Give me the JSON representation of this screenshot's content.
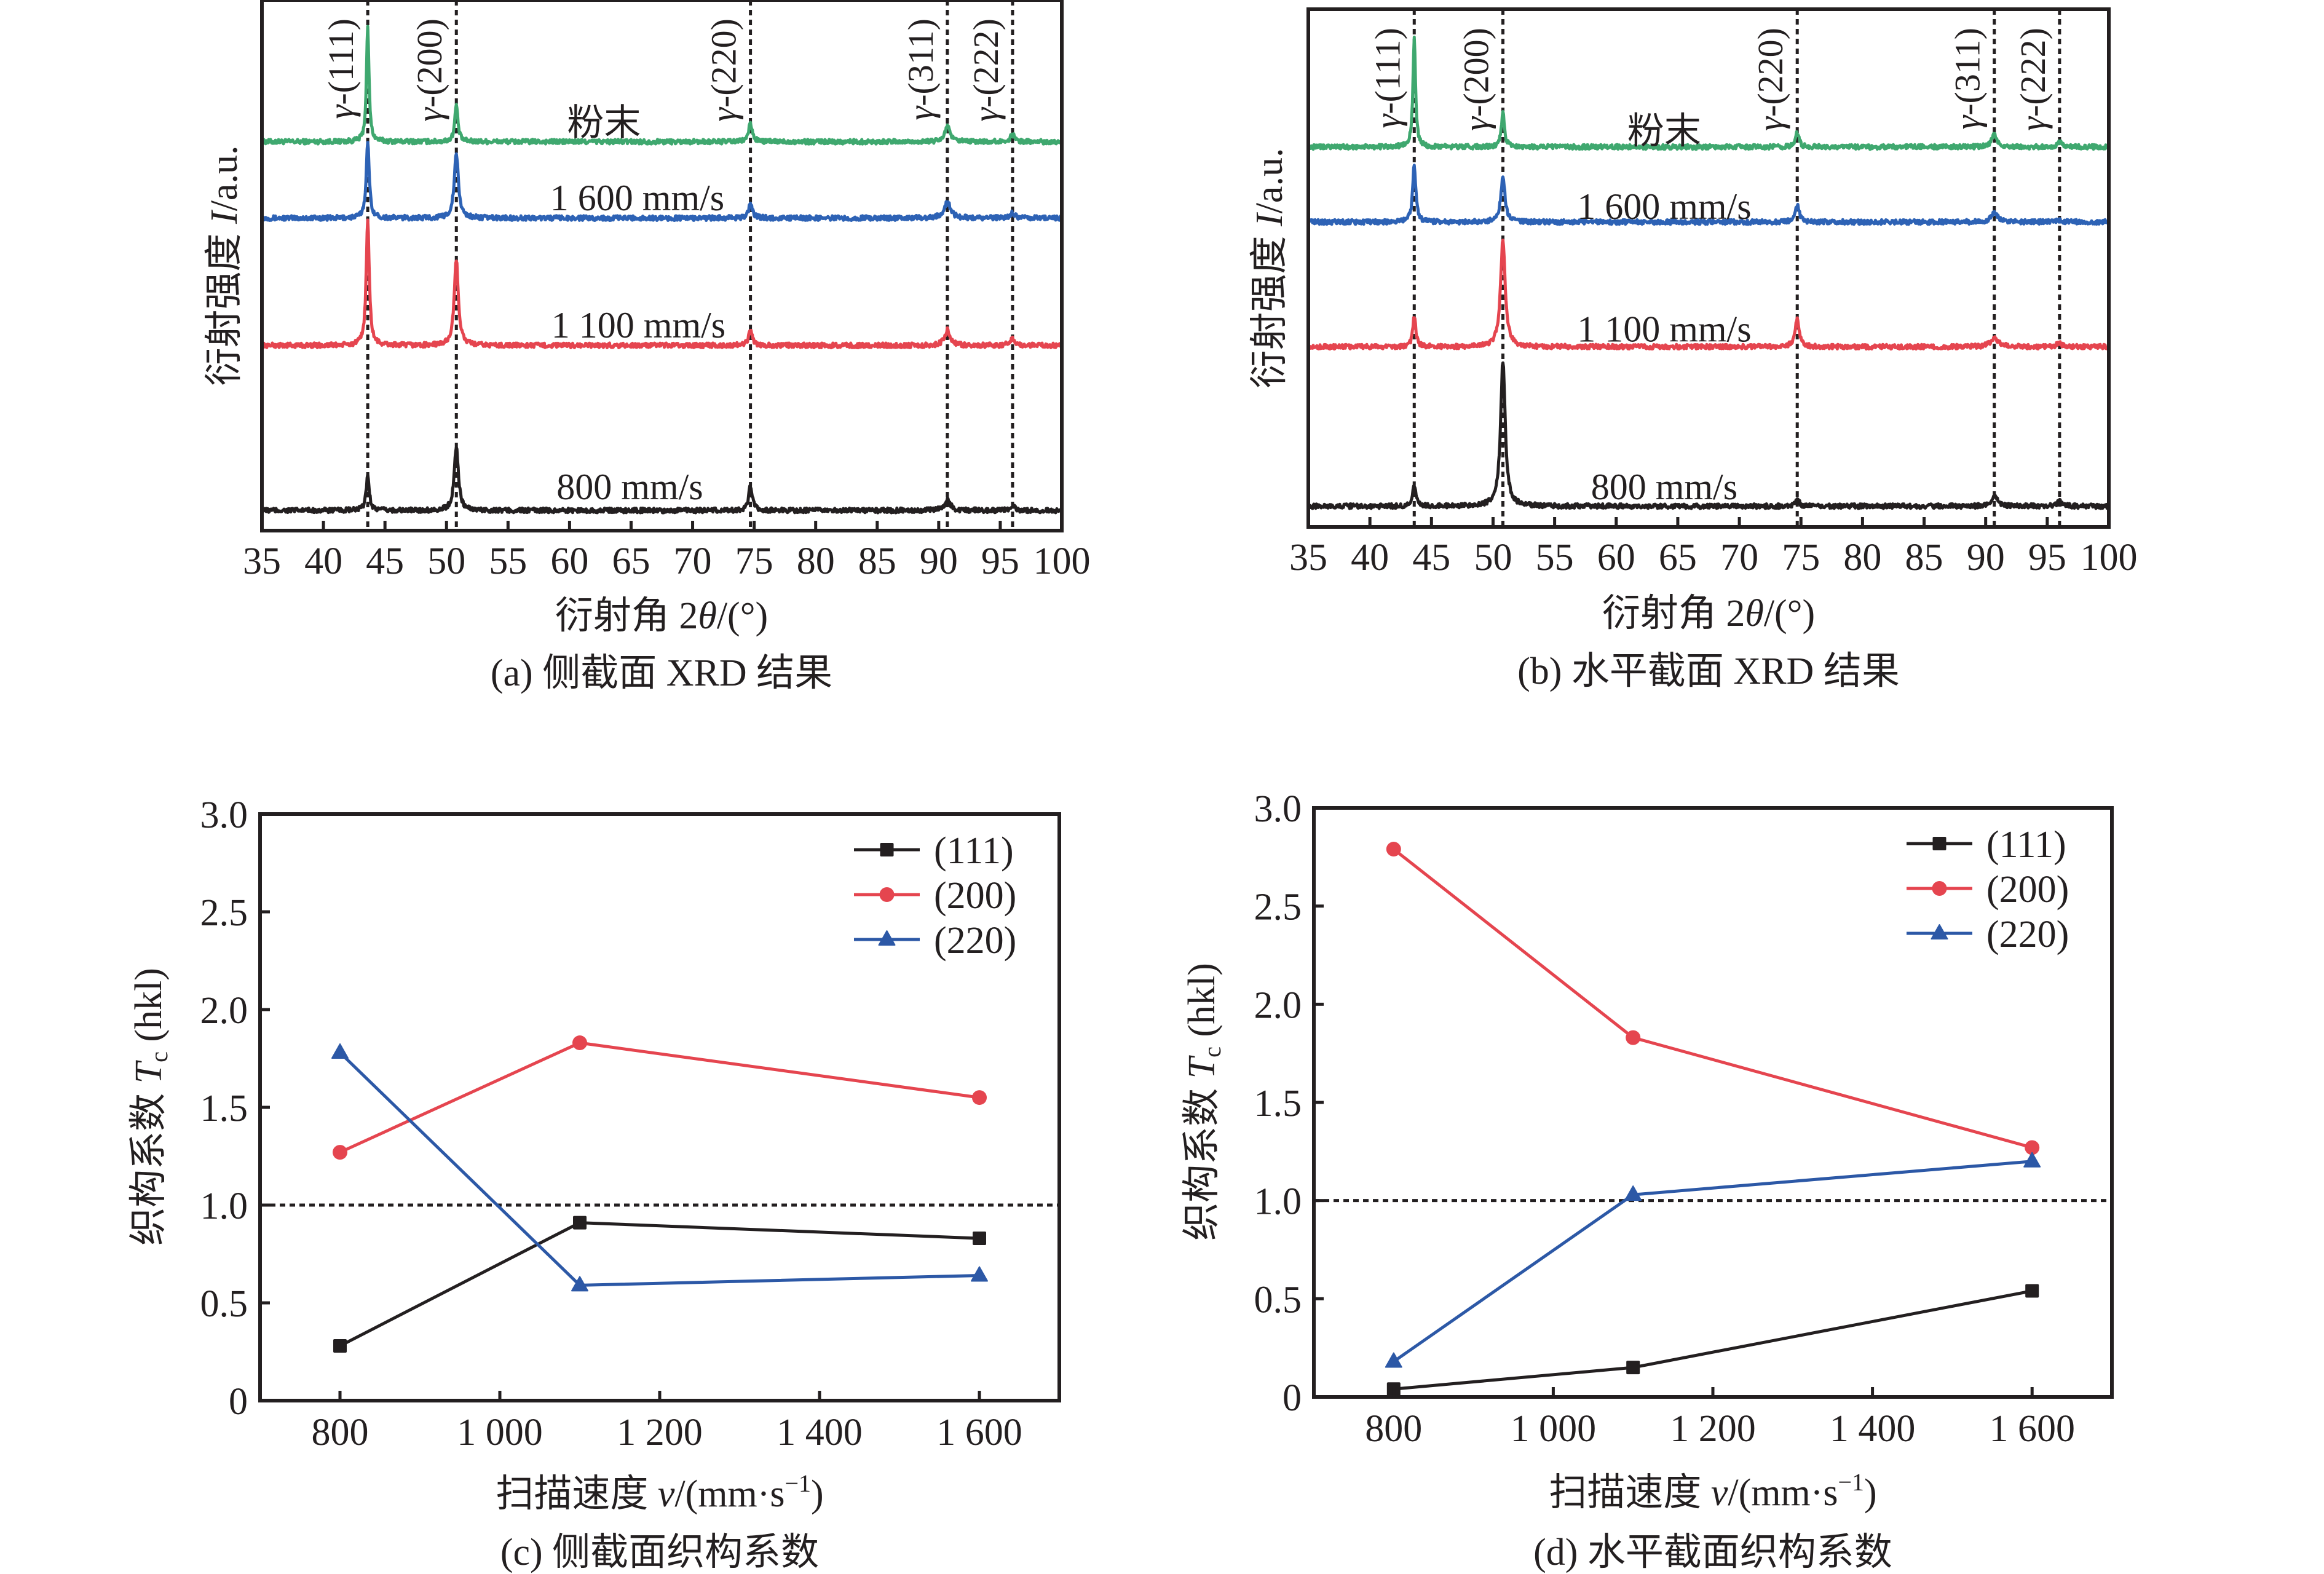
{
  "colors": {
    "axis": "#231f20",
    "powder": "#3fa86f",
    "v1600": "#2d62b5",
    "v1100": "#e5454f",
    "v800": "#231f20",
    "s111": "#231f20",
    "s200": "#e5454f",
    "s220": "#2c58a6"
  },
  "chart_data": [
    {
      "id": "a",
      "type": "line",
      "title": "(a) 侧截面 XRD 结果",
      "xlabel": "衍射角 2θ/(°)",
      "ylabel": "衍射强度 I/a.u.",
      "xlim": [
        35,
        100
      ],
      "ylim": [
        0,
        100
      ],
      "xticks": [
        35,
        40,
        45,
        50,
        55,
        60,
        65,
        70,
        75,
        80,
        85,
        90,
        95,
        100
      ],
      "xtick_labels": [
        "35",
        "40",
        "45",
        "50",
        "55",
        "60",
        "65",
        "70",
        "75",
        "80",
        "85",
        "90",
        "95",
        "100"
      ],
      "yticks": [],
      "grid": false,
      "reference_lines": [
        {
          "x": 43.6,
          "label": "γ-(111)"
        },
        {
          "x": 50.8,
          "label": "γ-(200)"
        },
        {
          "x": 74.7,
          "label": "γ-(220)"
        },
        {
          "x": 90.7,
          "label": "γ-(311)"
        },
        {
          "x": 96.0,
          "label": "γ-(222)"
        }
      ],
      "series": [
        {
          "name": "粉末",
          "color_key": "powder",
          "baseline": 73.3,
          "label_at": [
            62.8,
            76.8
          ],
          "peaks": [
            {
              "x": 43.6,
              "height": 21.5,
              "width": 0.25
            },
            {
              "x": 50.8,
              "height": 7.0,
              "width": 0.3
            },
            {
              "x": 74.7,
              "height": 3.5,
              "width": 0.35
            },
            {
              "x": 90.7,
              "height": 3.1,
              "width": 0.45
            },
            {
              "x": 96.0,
              "height": 1.3,
              "width": 0.45
            }
          ]
        },
        {
          "name": "1 600 mm/s",
          "color_key": "v1600",
          "baseline": 58.9,
          "label_at": [
            65.5,
            62.7
          ],
          "peaks": [
            {
              "x": 43.6,
              "height": 14.1,
              "width": 0.3
            },
            {
              "x": 50.8,
              "height": 12.2,
              "width": 0.4
            },
            {
              "x": 74.7,
              "height": 2.5,
              "width": 0.4
            },
            {
              "x": 90.7,
              "height": 3.1,
              "width": 0.6
            },
            {
              "x": 96.0,
              "height": 1.0,
              "width": 0.5
            }
          ]
        },
        {
          "name": "1 100 mm/s",
          "color_key": "v1100",
          "baseline": 34.9,
          "label_at": [
            65.6,
            38.7
          ],
          "peaks": [
            {
              "x": 43.6,
              "height": 23.5,
              "width": 0.3
            },
            {
              "x": 50.8,
              "height": 16.1,
              "width": 0.4
            },
            {
              "x": 74.7,
              "height": 2.6,
              "width": 0.4
            },
            {
              "x": 90.7,
              "height": 2.9,
              "width": 0.55
            },
            {
              "x": 96.0,
              "height": 1.3,
              "width": 0.5
            }
          ]
        },
        {
          "name": "800 mm/s",
          "color_key": "v800",
          "baseline": 3.8,
          "label_at": [
            64.9,
            8.2
          ],
          "peaks": [
            {
              "x": 43.6,
              "height": 6.7,
              "width": 0.3
            },
            {
              "x": 50.8,
              "height": 12.2,
              "width": 0.4
            },
            {
              "x": 74.7,
              "height": 4.6,
              "width": 0.35
            },
            {
              "x": 90.7,
              "height": 2.1,
              "width": 0.55
            },
            {
              "x": 96.0,
              "height": 0.8,
              "width": 0.5
            }
          ]
        }
      ]
    },
    {
      "id": "b",
      "type": "line",
      "title": "(b) 水平截面 XRD 结果",
      "xlabel": "衍射角 2θ/(°)",
      "ylabel": "衍射强度 I/a.u.",
      "xlim": [
        35,
        100
      ],
      "ylim": [
        0,
        100
      ],
      "xticks": [
        35,
        40,
        45,
        50,
        55,
        60,
        65,
        70,
        75,
        80,
        85,
        90,
        95,
        100
      ],
      "xtick_labels": [
        "35",
        "40",
        "45",
        "50",
        "55",
        "60",
        "65",
        "70",
        "75",
        "80",
        "85",
        "90",
        "95",
        "100"
      ],
      "yticks": [],
      "grid": false,
      "reference_lines": [
        {
          "x": 43.6,
          "label": "γ-(111)"
        },
        {
          "x": 50.8,
          "label": "γ-(200)"
        },
        {
          "x": 74.7,
          "label": "γ-(220)"
        },
        {
          "x": 90.7,
          "label": "γ-(311)"
        },
        {
          "x": 96.0,
          "label": "γ-(222)"
        }
      ],
      "series": [
        {
          "name": "粉末",
          "color_key": "powder",
          "baseline": 73.4,
          "label_at": [
            63.9,
            76.4
          ],
          "peaks": [
            {
              "x": 43.6,
              "height": 21.3,
              "width": 0.25
            },
            {
              "x": 50.8,
              "height": 6.8,
              "width": 0.3
            },
            {
              "x": 74.7,
              "height": 2.7,
              "width": 0.35
            },
            {
              "x": 90.7,
              "height": 2.7,
              "width": 0.45
            },
            {
              "x": 96.0,
              "height": 0.9,
              "width": 0.45
            }
          ]
        },
        {
          "name": "1 600 mm/s",
          "color_key": "v1600",
          "baseline": 58.9,
          "label_at": [
            63.9,
            61.9
          ],
          "peaks": [
            {
              "x": 43.6,
              "height": 11.1,
              "width": 0.3
            },
            {
              "x": 50.8,
              "height": 8.8,
              "width": 0.4
            },
            {
              "x": 74.7,
              "height": 3.3,
              "width": 0.4
            },
            {
              "x": 90.7,
              "height": 1.8,
              "width": 0.6
            },
            {
              "x": 96.0,
              "height": 0.4,
              "width": 0.5
            }
          ]
        },
        {
          "name": "1 100 mm/s",
          "color_key": "v1100",
          "baseline": 34.8,
          "label_at": [
            63.9,
            38.2
          ],
          "peaks": [
            {
              "x": 43.6,
              "height": 5.8,
              "width": 0.3
            },
            {
              "x": 50.8,
              "height": 20.8,
              "width": 0.45
            },
            {
              "x": 74.7,
              "height": 5.6,
              "width": 0.4
            },
            {
              "x": 90.7,
              "height": 1.8,
              "width": 0.7
            },
            {
              "x": 96.0,
              "height": 0.7,
              "width": 0.5
            }
          ]
        },
        {
          "name": "800 mm/s",
          "color_key": "v800",
          "baseline": 4.0,
          "label_at": [
            63.9,
            7.7
          ],
          "peaks": [
            {
              "x": 43.6,
              "height": 4.0,
              "width": 0.3
            },
            {
              "x": 50.8,
              "height": 28.0,
              "width": 0.45
            },
            {
              "x": 74.7,
              "height": 1.3,
              "width": 0.4
            },
            {
              "x": 90.7,
              "height": 2.0,
              "width": 0.6
            },
            {
              "x": 96.0,
              "height": 0.9,
              "width": 0.5
            }
          ]
        }
      ]
    },
    {
      "id": "c",
      "type": "line",
      "title": "(c) 侧截面织构系数",
      "xlabel": "扫描速度 v/(mm·s⁻¹)",
      "ylabel": "织构系数 T_c (hkl)",
      "xlim": [
        700,
        1700
      ],
      "ylim": [
        0,
        3.0
      ],
      "xticks": [
        800,
        1000,
        1200,
        1400,
        1600
      ],
      "xtick_labels": [
        "800",
        "1 000",
        "1 200",
        "1 400",
        "1 600"
      ],
      "yticks": [
        0,
        0.5,
        1.0,
        1.5,
        2.0,
        2.5,
        3.0
      ],
      "ytick_labels": [
        "0",
        "0.5",
        "1.0",
        "1.5",
        "2.0",
        "2.5",
        "3.0"
      ],
      "grid": false,
      "reference_line_y": 1.0,
      "legend": "top-right",
      "x": [
        800,
        1100,
        1600
      ],
      "series": [
        {
          "name": "(111)",
          "marker": "square",
          "color_key": "s111",
          "values": [
            0.28,
            0.91,
            0.83
          ]
        },
        {
          "name": "(200)",
          "marker": "circle",
          "color_key": "s200",
          "values": [
            1.27,
            1.83,
            1.55
          ]
        },
        {
          "name": "(220)",
          "marker": "triangle",
          "color_key": "s220",
          "values": [
            1.78,
            0.59,
            0.64
          ]
        }
      ]
    },
    {
      "id": "d",
      "type": "line",
      "title": "(d) 水平截面织构系数",
      "xlabel": "扫描速度 v/(mm·s⁻¹)",
      "ylabel": "织构系数 T_c (hkl)",
      "xlim": [
        700,
        1700
      ],
      "ylim": [
        0,
        3.0
      ],
      "xticks": [
        800,
        1000,
        1200,
        1400,
        1600
      ],
      "xtick_labels": [
        "800",
        "1 000",
        "1 200",
        "1 400",
        "1 600"
      ],
      "yticks": [
        0,
        0.5,
        1.0,
        1.5,
        2.0,
        2.5,
        3.0
      ],
      "ytick_labels": [
        "0",
        "0.5",
        "1.0",
        "1.5",
        "2.0",
        "2.5",
        "3.0"
      ],
      "grid": false,
      "reference_line_y": 1.0,
      "legend": "top-right",
      "x": [
        800,
        1100,
        1600
      ],
      "series": [
        {
          "name": "(111)",
          "marker": "square",
          "color_key": "s111",
          "values": [
            0.04,
            0.15,
            0.54
          ]
        },
        {
          "name": "(200)",
          "marker": "circle",
          "color_key": "s200",
          "values": [
            2.79,
            1.83,
            1.27
          ]
        },
        {
          "name": "(220)",
          "marker": "triangle",
          "color_key": "s220",
          "values": [
            0.18,
            1.03,
            1.2
          ]
        }
      ]
    }
  ],
  "labels": {
    "xrd_ylabel_main": "衍射强度 ",
    "xrd_ylabel_var": "I",
    "xrd_ylabel_unit": "/a.u.",
    "xrd_xlabel_main": "衍射角 2",
    "xrd_xlabel_var": "θ",
    "xrd_xlabel_unit": "/(°)",
    "tc_ylabel_main": "织构系数 ",
    "tc_ylabel_var": "T",
    "tc_ylabel_sub": "c",
    "tc_ylabel_unit": " (hkl)",
    "tc_xlabel_main": "扫描速度 ",
    "tc_xlabel_var": "v",
    "tc_xlabel_unit": "/(mm·s",
    "tc_xlabel_sup": "−1",
    "tc_xlabel_close": ")",
    "caption_a": "(a) 侧截面 XRD 结果",
    "caption_b": "(b) 水平截面 XRD 结果",
    "caption_c": "(c) 侧截面织构系数",
    "caption_d": "(d) 水平截面织构系数"
  }
}
